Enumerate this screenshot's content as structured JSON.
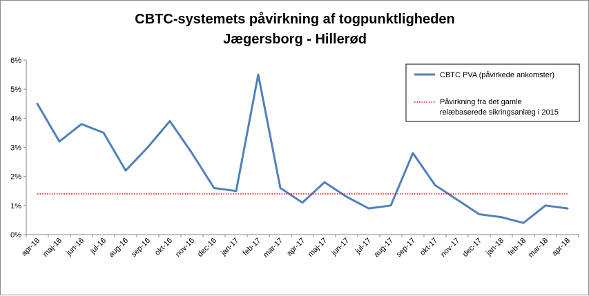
{
  "chart_data": {
    "type": "line",
    "title": [
      "CBTC-systemets påvirkning af togpunktligheden",
      "Jægersborg - Hillerød"
    ],
    "xlabel": "",
    "ylabel": "",
    "categories": [
      "apr-16",
      "maj-16",
      "jun-16",
      "jul-16",
      "aug-16",
      "sep-16",
      "okt-16",
      "nov-16",
      "dec-16",
      "jan-17",
      "feb-17",
      "mar-17",
      "apr-17",
      "maj-17",
      "jun-17",
      "jul-17",
      "aug-17",
      "sep-17",
      "okt-17",
      "nov-17",
      "dec-17",
      "jan-18",
      "feb-18",
      "mar-18",
      "apr-18"
    ],
    "ylim": [
      0,
      0.06
    ],
    "yticks": [
      0,
      0.01,
      0.02,
      0.03,
      0.04,
      0.05,
      0.06
    ],
    "ytick_labels": [
      "0%",
      "1%",
      "2%",
      "3%",
      "4%",
      "5%",
      "6%"
    ],
    "grid": false,
    "legend_position": "top-right",
    "series": [
      {
        "name": "CBTC PVA (påvirkede ankomster)",
        "color": "#4f81bd",
        "style": "solid",
        "values": [
          0.045,
          0.032,
          0.038,
          0.035,
          0.022,
          0.03,
          0.039,
          0.028,
          0.016,
          0.015,
          0.055,
          0.016,
          0.011,
          0.018,
          0.013,
          0.009,
          0.01,
          0.028,
          0.017,
          0.012,
          0.007,
          0.006,
          0.004,
          0.01,
          0.009
        ]
      },
      {
        "name": "Påvirkning fra det gamle relæbaserede sikringsanlæg i 2015",
        "name_lines": [
          "Påvirkning fra det gamle",
          "relæbaserede sikringsanlæg i 2015"
        ],
        "color": "#ff0000",
        "style": "dotted",
        "values": [
          0.014,
          0.014,
          0.014,
          0.014,
          0.014,
          0.014,
          0.014,
          0.014,
          0.014,
          0.014,
          0.014,
          0.014,
          0.014,
          0.014,
          0.014,
          0.014,
          0.014,
          0.014,
          0.014,
          0.014,
          0.014,
          0.014,
          0.014,
          0.014,
          0.014
        ]
      }
    ]
  }
}
